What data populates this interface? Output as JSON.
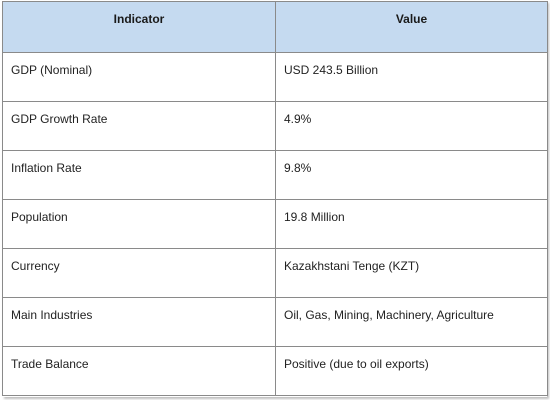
{
  "table": {
    "header": {
      "indicator": "Indicator",
      "value": "Value"
    },
    "rows": [
      {
        "indicator": "GDP (Nominal)",
        "value": "USD 243.5 Billion"
      },
      {
        "indicator": "GDP Growth Rate",
        "value": "4.9%"
      },
      {
        "indicator": "Inflation Rate",
        "value": "9.8%"
      },
      {
        "indicator": "Population",
        "value": "19.8 Million"
      },
      {
        "indicator": "Currency",
        "value": "Kazakhstani Tenge (KZT)"
      },
      {
        "indicator": "Main Industries",
        "value": "Oil, Gas, Mining, Machinery, Agriculture"
      },
      {
        "indicator": "Trade Balance",
        "value": "Positive (due to oil exports)"
      }
    ]
  },
  "colors": {
    "header_background": "#c5daf0",
    "border": "#8a8a8a"
  }
}
